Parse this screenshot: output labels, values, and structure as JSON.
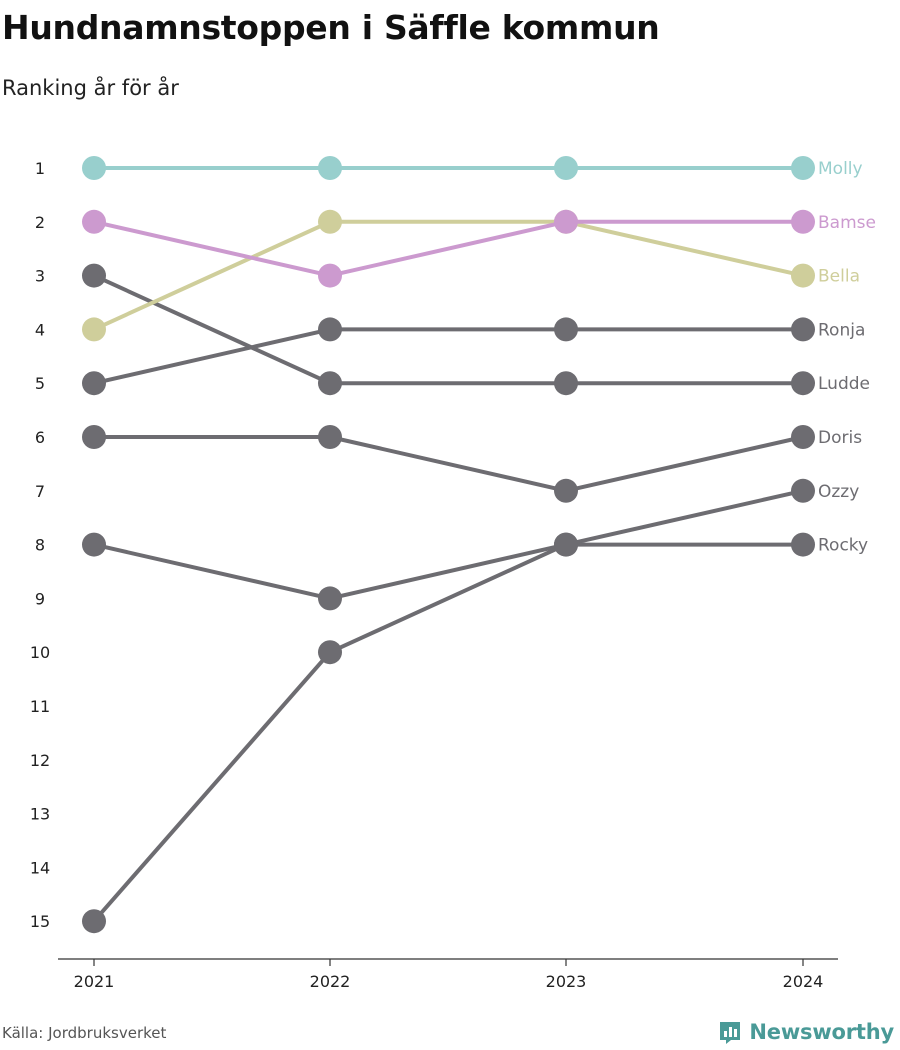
{
  "title": "Hundnamnstoppen i Säffle kommun",
  "subtitle": "Ranking år för år",
  "source": "Källa: Jordbruksverket",
  "brand": {
    "name": "Newsworthy",
    "icon": "newsworthy-logo-icon",
    "color": "#4a9a97"
  },
  "chart_data": {
    "type": "line",
    "subtype": "bump",
    "x": [
      "2021",
      "2022",
      "2023",
      "2024"
    ],
    "y_ticks": [
      1,
      2,
      3,
      4,
      5,
      6,
      7,
      8,
      9,
      10,
      11,
      12,
      13,
      14,
      15
    ],
    "ylim": [
      1,
      15
    ],
    "y_reversed": true,
    "grid": false,
    "series": [
      {
        "name": "Rocky",
        "values": [
          8,
          9,
          8,
          8
        ],
        "color": "#6d6c71"
      },
      {
        "name": "Ozzy",
        "values": [
          15,
          10,
          8,
          7
        ],
        "color": "#6d6c71"
      },
      {
        "name": "Doris",
        "values": [
          6,
          6,
          7,
          6
        ],
        "color": "#6d6c71"
      },
      {
        "name": "Ludde",
        "values": [
          3,
          5,
          5,
          5
        ],
        "color": "#6d6c71"
      },
      {
        "name": "Ronja",
        "values": [
          5,
          4,
          4,
          4
        ],
        "color": "#6d6c71"
      },
      {
        "name": "Bella",
        "values": [
          4,
          2,
          2,
          3
        ],
        "color": "#cfce9b"
      },
      {
        "name": "Bamse",
        "values": [
          2,
          3,
          2,
          2
        ],
        "color": "#cc9acf"
      },
      {
        "name": "Molly",
        "values": [
          1,
          1,
          1,
          1
        ],
        "color": "#98cfcd"
      }
    ]
  }
}
